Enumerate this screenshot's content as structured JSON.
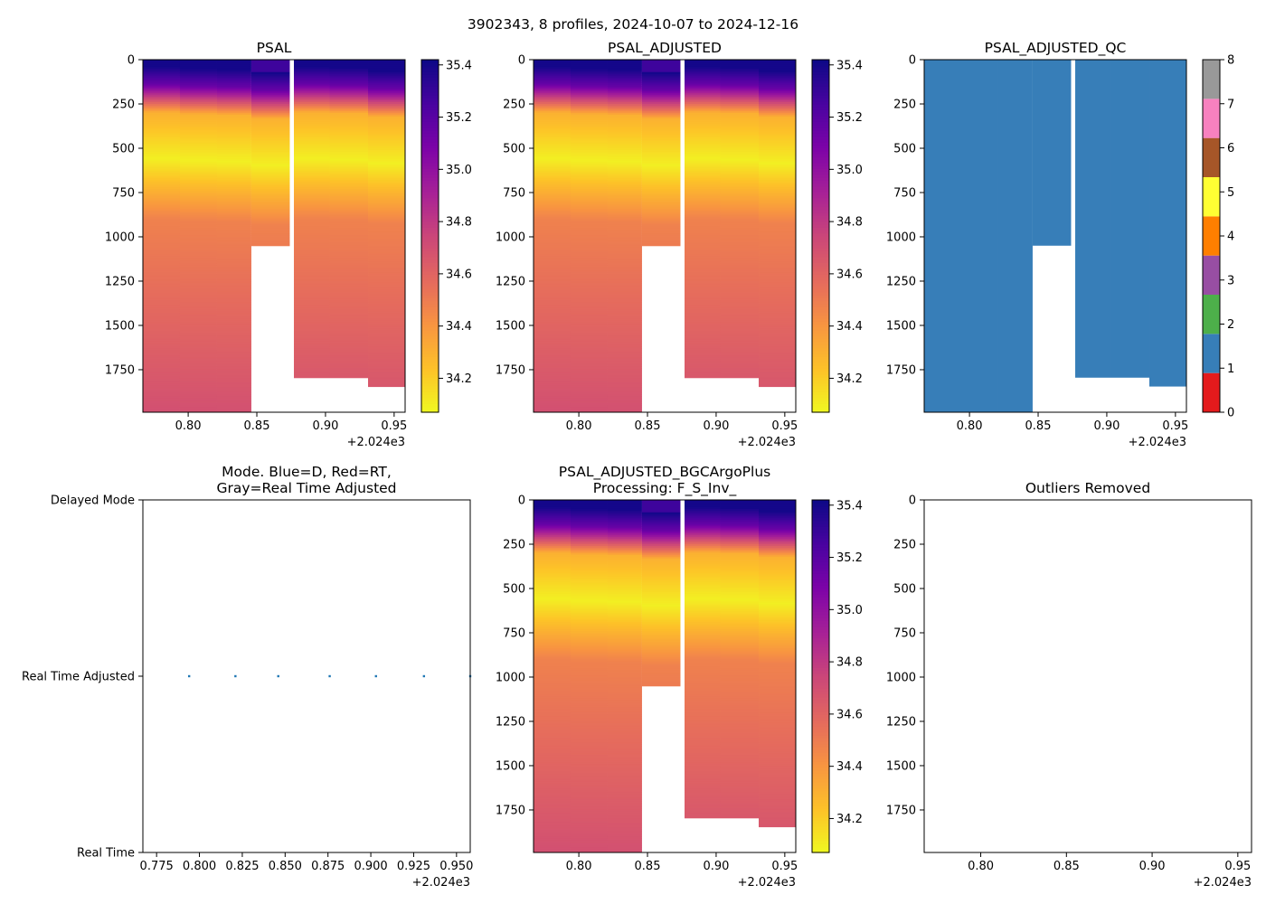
{
  "figure": {
    "suptitle": "3902343, 8 profiles, 2024-10-07 to 2024-12-16",
    "offset_label": "+2.024e3"
  },
  "colors": {
    "qc_palette": [
      "#e41a1c",
      "#377eb8",
      "#4daf4a",
      "#984ea3",
      "#ff7f00",
      "#ffff33",
      "#a65628",
      "#f781bf",
      "#999999"
    ],
    "mode_dot": "#1f77b4"
  },
  "chart_data": [
    {
      "id": "psal",
      "type": "heatmap",
      "title": "PSAL",
      "x_offset": 2024,
      "xlim": [
        0.767,
        0.958
      ],
      "ylim": [
        1990,
        0
      ],
      "x_ticks": [
        0.8,
        0.85,
        0.9,
        0.95
      ],
      "x_tick_labels": [
        "0.80",
        "0.85",
        "0.90",
        "0.95"
      ],
      "y_ticks": [
        0,
        250,
        500,
        750,
        1000,
        1250,
        1500,
        1750
      ],
      "y_tick_labels": [
        "0",
        "250",
        "500",
        "750",
        "1000",
        "1250",
        "1500",
        "1750"
      ],
      "profiles_x": [
        0.767,
        0.794,
        0.821,
        0.846,
        0.876,
        0.903,
        0.931,
        0.958
      ],
      "profile_max_depth": [
        1990,
        1990,
        1990,
        1050,
        1795,
        1795,
        1845
      ],
      "gap_x": [
        0.874,
        0.877
      ],
      "colormap": "plasma_r",
      "colorbar": {
        "min": 34.07,
        "max": 35.42,
        "ticks": [
          34.2,
          34.4,
          34.6,
          34.8,
          35.0,
          35.2,
          35.4
        ],
        "tick_labels": [
          "34.2",
          "34.4",
          "34.6",
          "34.8",
          "35.0",
          "35.2",
          "35.4"
        ]
      }
    },
    {
      "id": "psal-adjusted",
      "type": "heatmap",
      "title": "PSAL_ADJUSTED",
      "x_offset": 2024,
      "xlim": [
        0.767,
        0.958
      ],
      "ylim": [
        1990,
        0
      ],
      "x_ticks": [
        0.8,
        0.85,
        0.9,
        0.95
      ],
      "x_tick_labels": [
        "0.80",
        "0.85",
        "0.90",
        "0.95"
      ],
      "y_ticks": [
        0,
        250,
        500,
        750,
        1000,
        1250,
        1500,
        1750
      ],
      "y_tick_labels": [
        "0",
        "250",
        "500",
        "750",
        "1000",
        "1250",
        "1500",
        "1750"
      ],
      "profiles_x": [
        0.767,
        0.794,
        0.821,
        0.846,
        0.876,
        0.903,
        0.931,
        0.958
      ],
      "profile_max_depth": [
        1990,
        1990,
        1990,
        1050,
        1795,
        1795,
        1845
      ],
      "gap_x": [
        0.874,
        0.877
      ],
      "colormap": "plasma_r",
      "colorbar": {
        "min": 34.07,
        "max": 35.42,
        "ticks": [
          34.2,
          34.4,
          34.6,
          34.8,
          35.0,
          35.2,
          35.4
        ],
        "tick_labels": [
          "34.2",
          "34.4",
          "34.6",
          "34.8",
          "35.0",
          "35.2",
          "35.4"
        ]
      }
    },
    {
      "id": "psal-adjusted-qc",
      "type": "heatmap",
      "title": "PSAL_ADJUSTED_QC",
      "x_offset": 2024,
      "xlim": [
        0.767,
        0.958
      ],
      "ylim": [
        1990,
        0
      ],
      "x_ticks": [
        0.8,
        0.85,
        0.9,
        0.95
      ],
      "x_tick_labels": [
        "0.80",
        "0.85",
        "0.90",
        "0.95"
      ],
      "y_ticks": [
        0,
        250,
        500,
        750,
        1000,
        1250,
        1500,
        1750
      ],
      "y_tick_labels": [
        "0",
        "250",
        "500",
        "750",
        "1000",
        "1250",
        "1500",
        "1750"
      ],
      "profiles_x": [
        0.767,
        0.794,
        0.821,
        0.846,
        0.876,
        0.903,
        0.931,
        0.958
      ],
      "profile_max_depth": [
        1990,
        1990,
        1990,
        1050,
        1795,
        1795,
        1845
      ],
      "gap_x": [
        0.874,
        0.877
      ],
      "qc_value": 1,
      "colorbar": {
        "min": 0,
        "max": 8,
        "ticks": [
          0,
          1,
          2,
          3,
          4,
          5,
          6,
          7,
          8
        ],
        "tick_labels": [
          "0",
          "1",
          "2",
          "3",
          "4",
          "5",
          "6",
          "7",
          "8"
        ]
      }
    },
    {
      "id": "mode",
      "type": "scatter",
      "title_lines": [
        "Mode. Blue=D, Red=RT,",
        "Gray=Real Time Adjusted"
      ],
      "x_offset": 2024,
      "xlim": [
        0.767,
        0.958
      ],
      "ylim": [
        0,
        2
      ],
      "x_ticks": [
        0.775,
        0.8,
        0.825,
        0.85,
        0.875,
        0.9,
        0.925,
        0.95
      ],
      "x_tick_labels": [
        "0.775",
        "0.800",
        "0.825",
        "0.850",
        "0.875",
        "0.900",
        "0.925",
        "0.950"
      ],
      "y_ticks": [
        0,
        1,
        2
      ],
      "y_tick_labels": [
        "Real Time",
        "Real Time Adjusted",
        "Delayed Mode"
      ],
      "points_x": [
        0.794,
        0.821,
        0.846,
        0.876,
        0.903,
        0.931,
        0.958
      ],
      "points_y": [
        1,
        1,
        1,
        1,
        1,
        1,
        1
      ]
    },
    {
      "id": "psal-bgc",
      "type": "heatmap",
      "title_lines": [
        "PSAL_ADJUSTED_BGCArgoPlus",
        "Processing: F_S_Inv_"
      ],
      "x_offset": 2024,
      "xlim": [
        0.767,
        0.958
      ],
      "ylim": [
        1990,
        0
      ],
      "x_ticks": [
        0.8,
        0.85,
        0.9,
        0.95
      ],
      "x_tick_labels": [
        "0.80",
        "0.85",
        "0.90",
        "0.95"
      ],
      "y_ticks": [
        0,
        250,
        500,
        750,
        1000,
        1250,
        1500,
        1750
      ],
      "y_tick_labels": [
        "0",
        "250",
        "500",
        "750",
        "1000",
        "1250",
        "1500",
        "1750"
      ],
      "profiles_x": [
        0.767,
        0.794,
        0.821,
        0.846,
        0.876,
        0.903,
        0.931,
        0.958
      ],
      "profile_max_depth": [
        1990,
        1990,
        1990,
        1050,
        1795,
        1795,
        1845
      ],
      "gap_x": [
        0.874,
        0.877
      ],
      "colormap": "plasma_r",
      "colorbar": {
        "min": 34.07,
        "max": 35.42,
        "ticks": [
          34.2,
          34.4,
          34.6,
          34.8,
          35.0,
          35.2,
          35.4
        ],
        "tick_labels": [
          "34.2",
          "34.4",
          "34.6",
          "34.8",
          "35.0",
          "35.2",
          "35.4"
        ]
      }
    },
    {
      "id": "outliers",
      "type": "scatter",
      "title": "Outliers Removed",
      "x_offset": 2024,
      "xlim": [
        0.767,
        0.958
      ],
      "ylim": [
        1990,
        0
      ],
      "x_ticks": [
        0.8,
        0.85,
        0.9,
        0.95
      ],
      "x_tick_labels": [
        "0.80",
        "0.85",
        "0.90",
        "0.95"
      ],
      "y_ticks": [
        0,
        250,
        500,
        750,
        1000,
        1250,
        1500,
        1750
      ],
      "y_tick_labels": [
        "0",
        "250",
        "500",
        "750",
        "1000",
        "1250",
        "1500",
        "1750"
      ],
      "points_x": [],
      "points_y": []
    }
  ]
}
